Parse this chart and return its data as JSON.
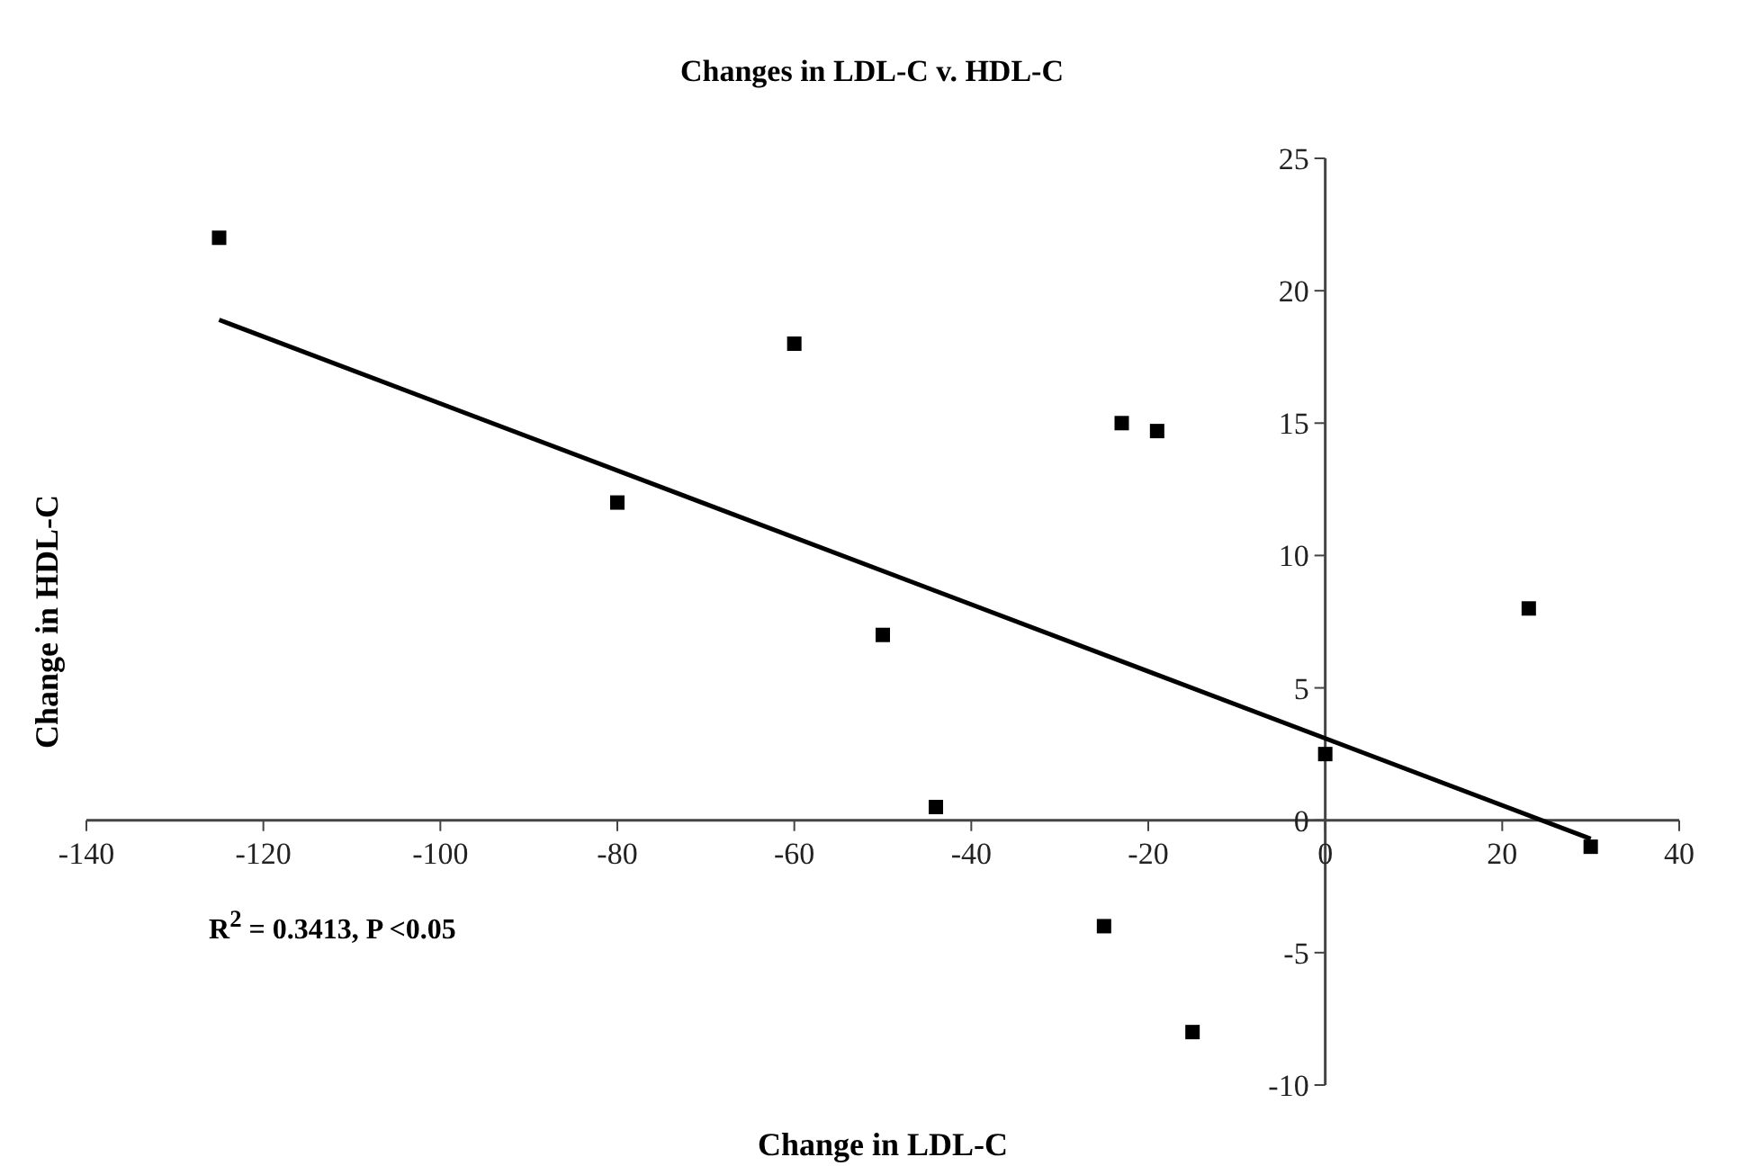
{
  "chart_data": {
    "type": "scatter",
    "title": "Changes in LDL-C v. HDL-C",
    "xlabel": "Change in LDL-C",
    "ylabel": "Change in HDL-C",
    "xlim": [
      -140,
      40
    ],
    "xticks": [
      -140,
      -120,
      -100,
      -80,
      -60,
      -40,
      -20,
      0,
      20,
      40
    ],
    "ylim": [
      -10,
      25
    ],
    "yticks": [
      -10,
      -5,
      0,
      5,
      10,
      15,
      20,
      25
    ],
    "series": [
      {
        "marker": "square",
        "color": "#000000",
        "x": [
          -125,
          -80,
          -60,
          -50,
          -44,
          -23,
          -19,
          -25,
          -15,
          0,
          23,
          30
        ],
        "values": [
          22,
          12,
          18,
          7,
          0.5,
          15,
          14.7,
          -4,
          -8,
          2.5,
          8,
          -1
        ]
      },
      {
        "type": "line",
        "marker": "none",
        "color": "#000000",
        "x": [
          -125,
          30
        ],
        "values": [
          18.9,
          -0.7
        ]
      }
    ],
    "annotations": [
      "R$^{2}$ = 0.3413, P <0.05"
    ]
  }
}
